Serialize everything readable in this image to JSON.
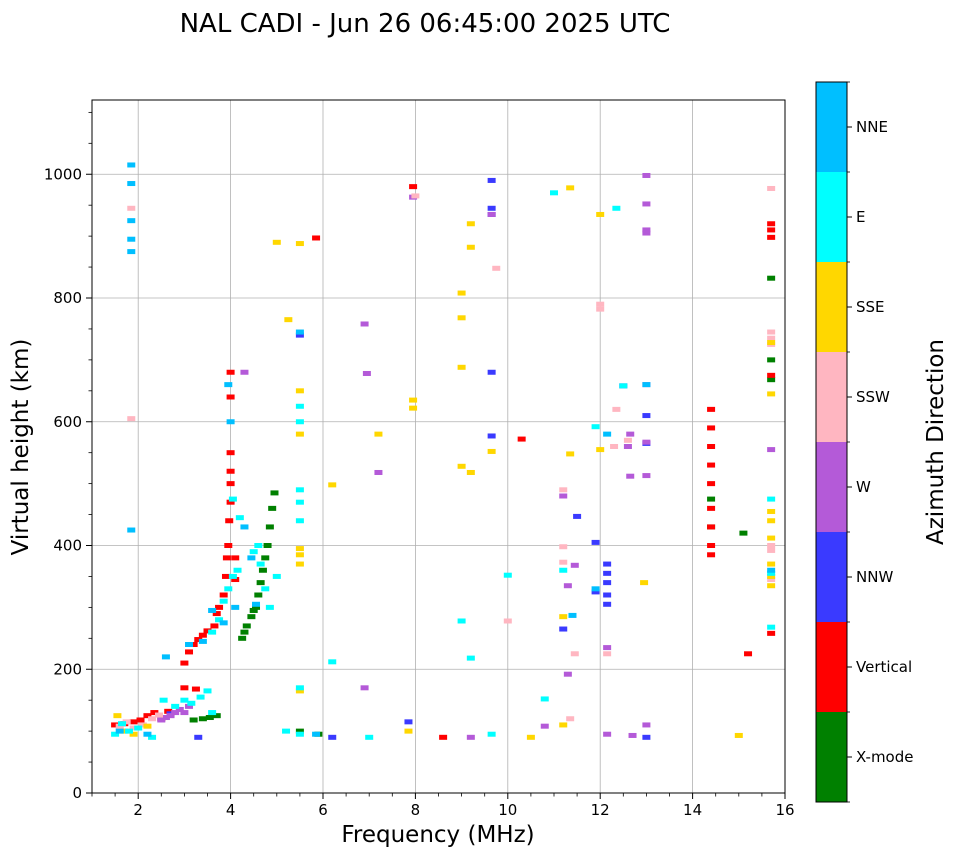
{
  "chart_data": {
    "type": "scatter",
    "title": "NAL CADI - Jun 26 06:45:00 2025 UTC",
    "xlabel": "Frequency (MHz)",
    "ylabel": "Virtual height (km)",
    "xlim": [
      1,
      16
    ],
    "ylim": [
      0,
      1120
    ],
    "xticks": [
      2,
      4,
      6,
      8,
      10,
      12,
      14,
      16
    ],
    "yticks": [
      0,
      200,
      400,
      600,
      800,
      1000
    ],
    "grid": true,
    "colorbar": {
      "label": "Azimuth Direction",
      "categories": [
        {
          "name": "X-mode",
          "color": "#008000"
        },
        {
          "name": "Vertical",
          "color": "#ff0000"
        },
        {
          "name": "NNW",
          "color": "#3a3aff"
        },
        {
          "name": "W",
          "color": "#b45ad8"
        },
        {
          "name": "SSW",
          "color": "#ffb6c1"
        },
        {
          "name": "SSE",
          "color": "#ffd700"
        },
        {
          "name": "E",
          "color": "#00ffff"
        },
        {
          "name": "NNE",
          "color": "#00bfff"
        }
      ]
    },
    "series": [
      {
        "name": "X-mode",
        "points": [
          [
            3.2,
            118
          ],
          [
            3.4,
            120
          ],
          [
            3.55,
            122
          ],
          [
            3.7,
            125
          ],
          [
            4.25,
            250
          ],
          [
            4.3,
            260
          ],
          [
            4.35,
            270
          ],
          [
            4.45,
            285
          ],
          [
            4.5,
            295
          ],
          [
            4.55,
            300
          ],
          [
            4.6,
            320
          ],
          [
            4.65,
            340
          ],
          [
            4.7,
            360
          ],
          [
            4.75,
            380
          ],
          [
            4.8,
            400
          ],
          [
            4.85,
            430
          ],
          [
            4.9,
            460
          ],
          [
            4.95,
            485
          ],
          [
            5.5,
            100
          ],
          [
            5.9,
            95
          ],
          [
            14.4,
            475
          ],
          [
            14.4,
            430
          ],
          [
            15.1,
            420
          ],
          [
            15.7,
            832
          ],
          [
            15.7,
            700
          ],
          [
            15.7,
            668
          ]
        ]
      },
      {
        "name": "Vertical",
        "points": [
          [
            1.5,
            110
          ],
          [
            1.7,
            112
          ],
          [
            1.9,
            115
          ],
          [
            2.05,
            118
          ],
          [
            2.2,
            125
          ],
          [
            2.35,
            130
          ],
          [
            2.5,
            120
          ],
          [
            2.65,
            132
          ],
          [
            3.0,
            210
          ],
          [
            3.1,
            228
          ],
          [
            3.2,
            240
          ],
          [
            3.3,
            248
          ],
          [
            3.4,
            255
          ],
          [
            3.5,
            262
          ],
          [
            3.65,
            270
          ],
          [
            3.7,
            290
          ],
          [
            3.75,
            300
          ],
          [
            3.85,
            320
          ],
          [
            3.9,
            350
          ],
          [
            3.92,
            380
          ],
          [
            3.95,
            400
          ],
          [
            3.97,
            440
          ],
          [
            4.0,
            470
          ],
          [
            4.0,
            500
          ],
          [
            4.0,
            520
          ],
          [
            4.0,
            550
          ],
          [
            4.0,
            640
          ],
          [
            4.0,
            680
          ],
          [
            4.1,
            380
          ],
          [
            4.1,
            345
          ],
          [
            3.0,
            170
          ],
          [
            3.25,
            168
          ],
          [
            5.85,
            897
          ],
          [
            7.95,
            980
          ],
          [
            8.6,
            90
          ],
          [
            10.3,
            572
          ],
          [
            14.4,
            620
          ],
          [
            14.4,
            590
          ],
          [
            14.4,
            560
          ],
          [
            14.4,
            530
          ],
          [
            14.4,
            500
          ],
          [
            14.4,
            460
          ],
          [
            14.4,
            430
          ],
          [
            14.4,
            400
          ],
          [
            14.4,
            385
          ],
          [
            15.2,
            225
          ],
          [
            15.7,
            920
          ],
          [
            15.7,
            910
          ],
          [
            15.7,
            898
          ],
          [
            15.7,
            675
          ],
          [
            15.7,
            258
          ]
        ]
      },
      {
        "name": "NNW",
        "points": [
          [
            2.7,
            128
          ],
          [
            3.3,
            90
          ],
          [
            5.5,
            740
          ],
          [
            6.2,
            90
          ],
          [
            7.85,
            115
          ],
          [
            9.65,
            990
          ],
          [
            9.65,
            945
          ],
          [
            9.65,
            935
          ],
          [
            9.65,
            680
          ],
          [
            9.65,
            577
          ],
          [
            11.2,
            265
          ],
          [
            11.5,
            447
          ],
          [
            11.9,
            405
          ],
          [
            11.9,
            325
          ],
          [
            12.15,
            370
          ],
          [
            12.15,
            355
          ],
          [
            12.15,
            340
          ],
          [
            12.15,
            320
          ],
          [
            12.15,
            305
          ],
          [
            12.5,
            658
          ],
          [
            13.0,
            610
          ],
          [
            13.0,
            565
          ],
          [
            13.0,
            90
          ]
        ]
      },
      {
        "name": "W",
        "points": [
          [
            2.5,
            118
          ],
          [
            2.6,
            122
          ],
          [
            2.7,
            125
          ],
          [
            2.8,
            130
          ],
          [
            2.9,
            135
          ],
          [
            3.0,
            130
          ],
          [
            3.1,
            140
          ],
          [
            4.3,
            680
          ],
          [
            6.9,
            758
          ],
          [
            6.95,
            678
          ],
          [
            6.9,
            170
          ],
          [
            7.2,
            518
          ],
          [
            7.95,
            963
          ],
          [
            9.65,
            935
          ],
          [
            9.2,
            90
          ],
          [
            10.8,
            108
          ],
          [
            11.2,
            480
          ],
          [
            11.3,
            192
          ],
          [
            11.45,
            368
          ],
          [
            11.3,
            335
          ],
          [
            12.15,
            235
          ],
          [
            12.15,
            95
          ],
          [
            12.65,
            580
          ],
          [
            12.6,
            560
          ],
          [
            12.65,
            512
          ],
          [
            12.7,
            93
          ],
          [
            13.0,
            998
          ],
          [
            13.0,
            952
          ],
          [
            13.0,
            910
          ],
          [
            13.0,
            905
          ],
          [
            13.0,
            660
          ],
          [
            13.0,
            567
          ],
          [
            13.0,
            513
          ],
          [
            13.0,
            110
          ],
          [
            15.7,
            555
          ]
        ]
      },
      {
        "name": "SSW",
        "points": [
          [
            1.6,
            108
          ],
          [
            1.75,
            115
          ],
          [
            1.9,
            105
          ],
          [
            2.1,
            110
          ],
          [
            2.3,
            120
          ],
          [
            2.45,
            126
          ],
          [
            1.85,
            605
          ],
          [
            1.85,
            945
          ],
          [
            8.0,
            965
          ],
          [
            9.75,
            848
          ],
          [
            10.0,
            278
          ],
          [
            11.2,
            490
          ],
          [
            11.2,
            398
          ],
          [
            11.2,
            373
          ],
          [
            11.35,
            120
          ],
          [
            11.45,
            225
          ],
          [
            12.0,
            790
          ],
          [
            12.0,
            782
          ],
          [
            12.15,
            225
          ],
          [
            12.35,
            620
          ],
          [
            12.3,
            560
          ],
          [
            12.6,
            570
          ],
          [
            15.7,
            977
          ],
          [
            15.7,
            745
          ],
          [
            15.7,
            735
          ],
          [
            15.7,
            725
          ],
          [
            15.7,
            400
          ],
          [
            15.7,
            392
          ],
          [
            15.7,
            345
          ]
        ]
      },
      {
        "name": "SSE",
        "points": [
          [
            1.55,
            125
          ],
          [
            1.7,
            100
          ],
          [
            1.9,
            95
          ],
          [
            2.2,
            108
          ],
          [
            5.0,
            890
          ],
          [
            5.25,
            765
          ],
          [
            5.5,
            888
          ],
          [
            5.5,
            650
          ],
          [
            5.5,
            580
          ],
          [
            5.5,
            395
          ],
          [
            5.5,
            385
          ],
          [
            5.5,
            370
          ],
          [
            5.5,
            165
          ],
          [
            6.2,
            498
          ],
          [
            7.2,
            580
          ],
          [
            7.95,
            635
          ],
          [
            7.95,
            622
          ],
          [
            7.85,
            100
          ],
          [
            9.0,
            808
          ],
          [
            9.0,
            768
          ],
          [
            9.0,
            688
          ],
          [
            9.0,
            528
          ],
          [
            9.2,
            920
          ],
          [
            9.2,
            882
          ],
          [
            9.2,
            518
          ],
          [
            9.65,
            552
          ],
          [
            10.5,
            90
          ],
          [
            11.2,
            285
          ],
          [
            11.2,
            110
          ],
          [
            11.35,
            978
          ],
          [
            11.35,
            548
          ],
          [
            12.0,
            935
          ],
          [
            12.0,
            555
          ],
          [
            12.95,
            340
          ],
          [
            15.0,
            93
          ],
          [
            15.7,
            728
          ],
          [
            15.7,
            645
          ],
          [
            15.7,
            455
          ],
          [
            15.7,
            440
          ],
          [
            15.7,
            412
          ],
          [
            15.7,
            370
          ],
          [
            15.7,
            350
          ],
          [
            15.7,
            335
          ]
        ]
      },
      {
        "name": "E",
        "points": [
          [
            1.5,
            95
          ],
          [
            1.65,
            112
          ],
          [
            1.8,
            100
          ],
          [
            2.0,
            105
          ],
          [
            2.3,
            90
          ],
          [
            2.55,
            150
          ],
          [
            2.8,
            140
          ],
          [
            3.0,
            150
          ],
          [
            3.15,
            145
          ],
          [
            3.35,
            155
          ],
          [
            3.5,
            165
          ],
          [
            3.6,
            130
          ],
          [
            3.6,
            260
          ],
          [
            3.75,
            280
          ],
          [
            3.85,
            310
          ],
          [
            3.95,
            330
          ],
          [
            4.05,
            350
          ],
          [
            4.05,
            475
          ],
          [
            4.15,
            360
          ],
          [
            4.2,
            445
          ],
          [
            4.5,
            390
          ],
          [
            4.6,
            400
          ],
          [
            4.65,
            370
          ],
          [
            4.75,
            330
          ],
          [
            4.85,
            300
          ],
          [
            5.0,
            350
          ],
          [
            5.2,
            100
          ],
          [
            5.5,
            490
          ],
          [
            5.5,
            470
          ],
          [
            5.5,
            440
          ],
          [
            5.5,
            625
          ],
          [
            5.5,
            600
          ],
          [
            5.5,
            170
          ],
          [
            5.5,
            95
          ],
          [
            6.2,
            212
          ],
          [
            7.0,
            90
          ],
          [
            9.0,
            278
          ],
          [
            9.2,
            218
          ],
          [
            9.65,
            95
          ],
          [
            10.0,
            352
          ],
          [
            10.8,
            152
          ],
          [
            11.0,
            970
          ],
          [
            11.2,
            360
          ],
          [
            11.9,
            592
          ],
          [
            12.35,
            945
          ],
          [
            12.5,
            658
          ],
          [
            15.7,
            475
          ],
          [
            15.7,
            355
          ],
          [
            15.7,
            268
          ]
        ]
      },
      {
        "name": "NNE",
        "points": [
          [
            1.6,
            100
          ],
          [
            1.85,
            1015
          ],
          [
            1.85,
            985
          ],
          [
            1.85,
            925
          ],
          [
            1.85,
            895
          ],
          [
            1.85,
            875
          ],
          [
            1.85,
            425
          ],
          [
            2.2,
            95
          ],
          [
            2.6,
            220
          ],
          [
            3.1,
            240
          ],
          [
            3.4,
            245
          ],
          [
            3.6,
            295
          ],
          [
            3.85,
            275
          ],
          [
            3.95,
            660
          ],
          [
            4.0,
            600
          ],
          [
            4.1,
            300
          ],
          [
            4.3,
            430
          ],
          [
            4.45,
            380
          ],
          [
            4.55,
            305
          ],
          [
            5.5,
            745
          ],
          [
            5.85,
            95
          ],
          [
            11.4,
            287
          ],
          [
            11.9,
            330
          ],
          [
            12.15,
            580
          ],
          [
            13.0,
            660
          ],
          [
            15.7,
            360
          ]
        ]
      }
    ]
  }
}
